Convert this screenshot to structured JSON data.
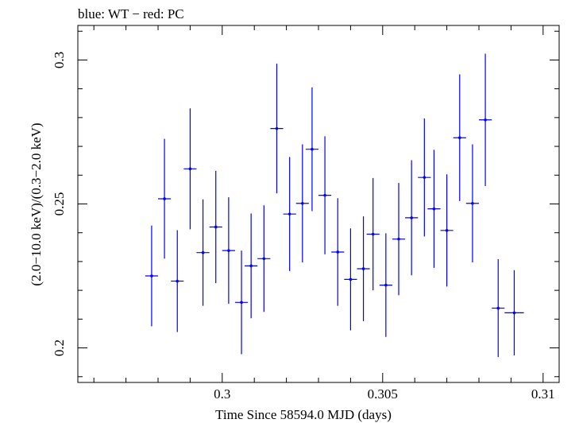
{
  "chart_data": {
    "type": "scatter",
    "title": "blue: WT − red: PC",
    "xlabel": "Time Since 58594.0 MJD (days)",
    "ylabel": "(2.0−10.0 keV)/(0.3−2.0 keV)",
    "xlim": [
      0.2955,
      0.3105
    ],
    "ylim": [
      0.188,
      0.312
    ],
    "x_major_ticks": [
      0.3,
      0.305,
      0.31
    ],
    "x_tick_labels": [
      "0.3",
      "0.305",
      "0.31"
    ],
    "y_major_ticks": [
      0.2,
      0.25,
      0.3
    ],
    "y_tick_labels": [
      "0.2",
      "0.25",
      "0.3"
    ],
    "x_minor_step": 0.001,
    "y_minor_step": 0.01,
    "grid": false,
    "series": [
      {
        "name": "WT",
        "color": "#0000ff",
        "points": [
          {
            "x": 0.2978,
            "xerr": 0.0002,
            "y": 0.225,
            "yerr": 0.0175
          },
          {
            "x": 0.2982,
            "xerr": 0.0002,
            "y": 0.2518,
            "yerr": 0.0208
          },
          {
            "x": 0.2986,
            "xerr": 0.0002,
            "y": 0.2232,
            "yerr": 0.0177
          },
          {
            "x": 0.299,
            "xerr": 0.0002,
            "y": 0.2622,
            "yerr": 0.021
          },
          {
            "x": 0.2994,
            "xerr": 0.0002,
            "y": 0.2331,
            "yerr": 0.0185
          },
          {
            "x": 0.2998,
            "xerr": 0.0002,
            "y": 0.242,
            "yerr": 0.0195
          },
          {
            "x": 0.3002,
            "xerr": 0.0002,
            "y": 0.2338,
            "yerr": 0.0185
          },
          {
            "x": 0.3006,
            "xerr": 0.0002,
            "y": 0.2158,
            "yerr": 0.018
          },
          {
            "x": 0.3009,
            "xerr": 0.0002,
            "y": 0.2285,
            "yerr": 0.0182
          },
          {
            "x": 0.3013,
            "xerr": 0.0002,
            "y": 0.231,
            "yerr": 0.0185
          },
          {
            "x": 0.3017,
            "xerr": 0.0002,
            "y": 0.2762,
            "yerr": 0.0225
          },
          {
            "x": 0.3021,
            "xerr": 0.0002,
            "y": 0.2465,
            "yerr": 0.0198
          },
          {
            "x": 0.3025,
            "xerr": 0.0002,
            "y": 0.2502,
            "yerr": 0.0205
          },
          {
            "x": 0.3028,
            "xerr": 0.0002,
            "y": 0.269,
            "yerr": 0.0215
          },
          {
            "x": 0.3032,
            "xerr": 0.0002,
            "y": 0.253,
            "yerr": 0.0205
          },
          {
            "x": 0.3036,
            "xerr": 0.0002,
            "y": 0.2333,
            "yerr": 0.0187
          },
          {
            "x": 0.304,
            "xerr": 0.0002,
            "y": 0.2238,
            "yerr": 0.0177
          },
          {
            "x": 0.3044,
            "xerr": 0.0002,
            "y": 0.2275,
            "yerr": 0.0182
          },
          {
            "x": 0.3047,
            "xerr": 0.0002,
            "y": 0.2395,
            "yerr": 0.0195
          },
          {
            "x": 0.3051,
            "xerr": 0.0002,
            "y": 0.2218,
            "yerr": 0.018
          },
          {
            "x": 0.3055,
            "xerr": 0.0002,
            "y": 0.2378,
            "yerr": 0.0195
          },
          {
            "x": 0.3059,
            "xerr": 0.0002,
            "y": 0.2452,
            "yerr": 0.02
          },
          {
            "x": 0.3063,
            "xerr": 0.0002,
            "y": 0.2592,
            "yerr": 0.0205
          },
          {
            "x": 0.3066,
            "xerr": 0.0002,
            "y": 0.2483,
            "yerr": 0.0205
          },
          {
            "x": 0.307,
            "xerr": 0.0002,
            "y": 0.2408,
            "yerr": 0.0195
          },
          {
            "x": 0.3074,
            "xerr": 0.0002,
            "y": 0.273,
            "yerr": 0.022
          },
          {
            "x": 0.3078,
            "xerr": 0.0002,
            "y": 0.2502,
            "yerr": 0.0205
          },
          {
            "x": 0.3082,
            "xerr": 0.0002,
            "y": 0.2792,
            "yerr": 0.023
          },
          {
            "x": 0.3086,
            "xerr": 0.0002,
            "y": 0.2138,
            "yerr": 0.017
          },
          {
            "x": 0.3091,
            "xerr": 0.0003,
            "y": 0.2122,
            "yerr": 0.0148
          }
        ]
      }
    ]
  }
}
